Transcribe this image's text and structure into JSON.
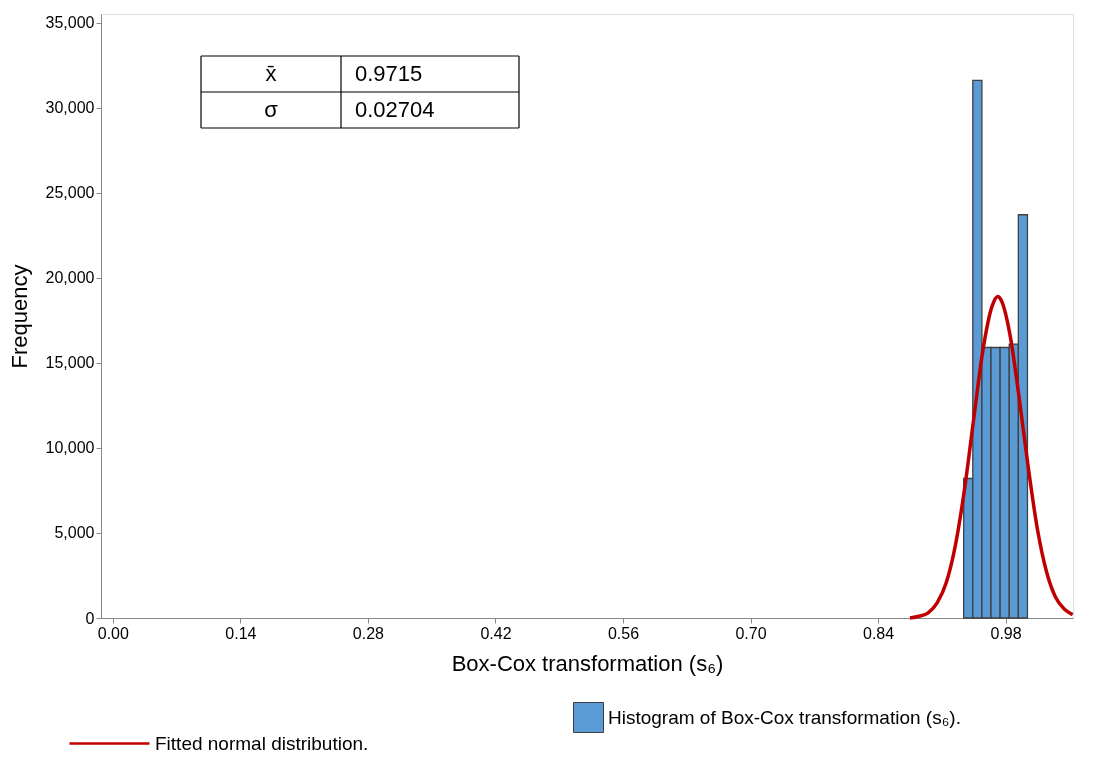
{
  "chart_data": {
    "type": "histogram",
    "xlabel": "Box-Cox transformation (s₆)",
    "ylabel": "Frequency",
    "bins": [
      0.934,
      0.944,
      0.954,
      0.964,
      0.974,
      0.984,
      0.994,
      1.004
    ],
    "series": [
      {
        "name": "Histogram of Box-Cox transformation (s₆).",
        "color": "#5b9bd5",
        "values": [
          8200,
          31600,
          15900,
          15900,
          15900,
          16100,
          23700
        ]
      },
      {
        "name": "Fitted normal distribution.",
        "type": "line",
        "color": "#c00000",
        "x": [
          0.875,
          0.885,
          0.895,
          0.905,
          0.915,
          0.925,
          0.935,
          0.945,
          0.955,
          0.965,
          0.9715,
          0.975,
          0.985,
          0.995,
          1.005,
          1.015,
          1.025,
          1.035,
          1.045,
          1.0536
        ],
        "values": [
          0,
          100,
          300,
          900,
          2100,
          4300,
          7600,
          11700,
          15700,
          18300,
          18900,
          18700,
          16600,
          12900,
          8800,
          5200,
          2700,
          1200,
          500,
          200
        ]
      }
    ],
    "xlim": [
      -0.013,
      1.054
    ],
    "ylim": [
      0,
      35500
    ],
    "xticks": [
      {
        "value": 0,
        "label": "0.00"
      },
      0.14,
      0.28,
      0.42,
      0.56,
      {
        "value": 0.7,
        "label": "0.70"
      },
      0.84,
      0.98
    ],
    "yticks": [
      {
        "value": 0,
        "label": "0"
      },
      {
        "value": 5000,
        "label": "5,000"
      },
      {
        "value": 10000,
        "label": "10,000"
      },
      {
        "value": 15000,
        "label": "15,000"
      },
      {
        "value": 20000,
        "label": "20,000"
      },
      {
        "value": 25000,
        "label": "25,000"
      },
      {
        "value": 30000,
        "label": "30,000"
      },
      {
        "value": 35000,
        "label": "35,000"
      }
    ],
    "annotations": [
      "x̄",
      "0.9715",
      "σ",
      "0.02704"
    ],
    "grid": false,
    "legend": "bottom"
  }
}
